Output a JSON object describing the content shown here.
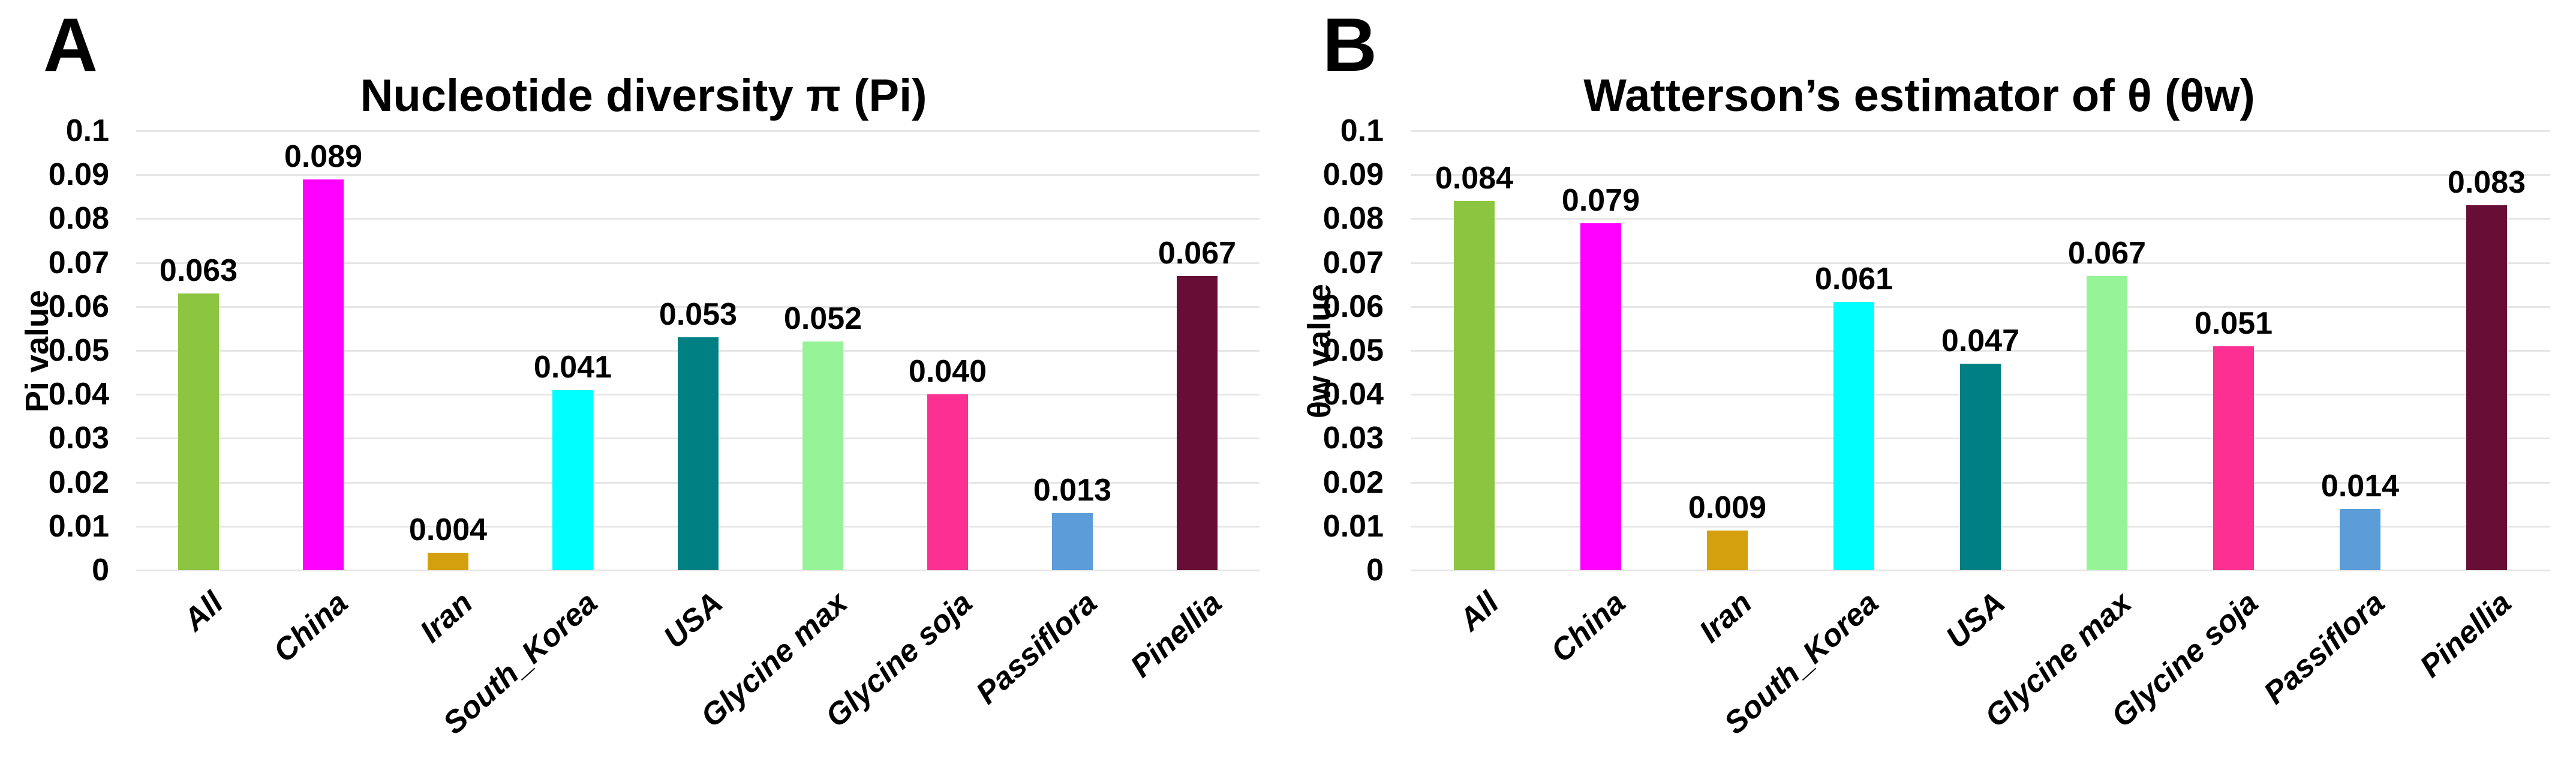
{
  "colors": {
    "background": "#FFFFFF",
    "gridline": "#E6E6E6",
    "text": "#000000"
  },
  "chart_data": [
    {
      "type": "bar",
      "panel_label": "A",
      "title": "Nucleotide diversity π (Pi)",
      "xlabel": "",
      "ylabel": "Pi value",
      "categories": [
        "All",
        "China",
        "Iran",
        "South_Korea",
        "USA",
        "Glycine max",
        "Glycine soja",
        "Passiflora",
        "Pinellia"
      ],
      "values": [
        0.063,
        0.089,
        0.004,
        0.041,
        0.053,
        0.052,
        0.04,
        0.013,
        0.067
      ],
      "value_labels": [
        "0.063",
        "0.089",
        "0.004",
        "0.041",
        "0.053",
        "0.052",
        "0.040",
        "0.013",
        "0.067"
      ],
      "bar_colors": [
        "#8CC540",
        "#FF00FF",
        "#D5A00D",
        "#00FFFF",
        "#008083",
        "#97F397",
        "#FC3093",
        "#5C9CD9",
        "#670D36"
      ],
      "ylim": [
        0,
        0.1
      ],
      "y_ticks": [
        "0.1",
        "0.09",
        "0.08",
        "0.07",
        "0.06",
        "0.05",
        "0.04",
        "0.03",
        "0.02",
        "0.01",
        "0"
      ],
      "grid": "horizontal",
      "legend": "none"
    },
    {
      "type": "bar",
      "panel_label": "B",
      "title": "Watterson’s estimator of θ (θw)",
      "xlabel": "",
      "ylabel": "θw value",
      "categories": [
        "All",
        "China",
        "Iran",
        "South_Korea",
        "USA",
        "Glycine max",
        "Glycine soja",
        "Passiflora",
        "Pinellia"
      ],
      "values": [
        0.084,
        0.079,
        0.009,
        0.061,
        0.047,
        0.067,
        0.051,
        0.014,
        0.083
      ],
      "value_labels": [
        "0.084",
        "0.079",
        "0.009",
        "0.061",
        "0.047",
        "0.067",
        "0.051",
        "0.014",
        "0.083"
      ],
      "bar_colors": [
        "#8CC540",
        "#FF00FF",
        "#D5A00D",
        "#00FFFF",
        "#008083",
        "#97F397",
        "#FC3093",
        "#5C9CD9",
        "#670D36"
      ],
      "ylim": [
        0,
        0.1
      ],
      "y_ticks": [
        "0.1",
        "0.09",
        "0.08",
        "0.07",
        "0.06",
        "0.05",
        "0.04",
        "0.03",
        "0.02",
        "0.01",
        "0"
      ],
      "grid": "horizontal",
      "legend": "none"
    }
  ]
}
